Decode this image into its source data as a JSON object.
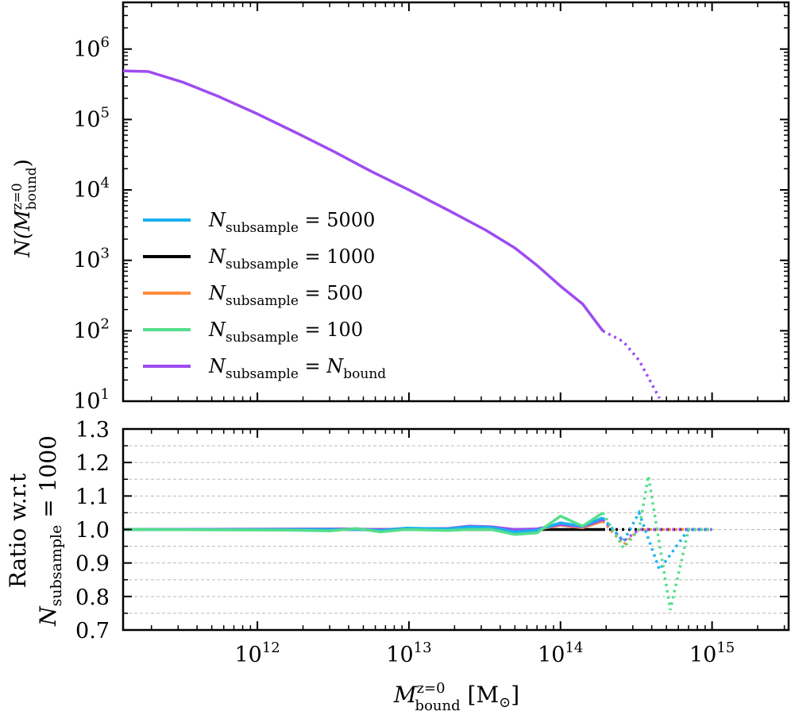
{
  "colors": {
    "n5000": "#1ab0f0",
    "n1000": "#000000",
    "n500": "#ff8c3c",
    "n100": "#55de8c",
    "nbound": "#9d4cf0"
  },
  "chart_data": [
    {
      "panel": "top",
      "type": "line",
      "xscale": "log",
      "yscale": "log",
      "xlim": [
        130000000000.0,
        3200000000000000.0
      ],
      "ylim": [
        10,
        4600000.0
      ],
      "yticks": [
        {
          "exp": "1",
          "value": 10
        },
        {
          "exp": "2",
          "value": 100
        },
        {
          "exp": "3",
          "value": 1000
        },
        {
          "exp": "4",
          "value": 10000
        },
        {
          "exp": "5",
          "value": 100000
        },
        {
          "exp": "6",
          "value": 1000000
        }
      ],
      "ylabel": {
        "main": "N(M",
        "sup": "z=0",
        "sub": "bound",
        "close": ")"
      },
      "series": [
        {
          "key": "n5000",
          "label": "N",
          "label_sub": "subsample",
          "label_eq": " = 5000",
          "label_tail": ""
        },
        {
          "key": "n1000",
          "label": "N",
          "label_sub": "subsample",
          "label_eq": " = 1000",
          "label_tail": ""
        },
        {
          "key": "n500",
          "label": "N",
          "label_sub": "subsample",
          "label_eq": " = 500",
          "label_tail": ""
        },
        {
          "key": "n100",
          "label": "N",
          "label_sub": "subsample",
          "label_eq": " = 100",
          "label_tail": ""
        },
        {
          "key": "nbound",
          "label": "N",
          "label_sub": "subsample",
          "label_eq": " = N",
          "label_tail": "bound"
        }
      ],
      "solid_points": [
        [
          130000000000.0,
          490000
        ],
        [
          190000000000.0,
          480000
        ],
        [
          320000000000.0,
          340000
        ],
        [
          560000000000.0,
          210000
        ],
        [
          1000000000000.0,
          120000
        ],
        [
          1800000000000.0,
          65000
        ],
        [
          3200000000000.0,
          35000
        ],
        [
          5600000000000.0,
          18500
        ],
        [
          10000000000000.0,
          10000
        ],
        [
          18000000000000.0,
          5200
        ],
        [
          32000000000000.0,
          2700
        ],
        [
          50000000000000.0,
          1500
        ],
        [
          70000000000000.0,
          850
        ],
        [
          100000000000000.0,
          430
        ],
        [
          140000000000000.0,
          240
        ],
        [
          190000000000000.0,
          100
        ]
      ],
      "dotted_points": [
        [
          190000000000000.0,
          100
        ],
        [
          260000000000000.0,
          70
        ],
        [
          330000000000000.0,
          38
        ],
        [
          450000000000000.0,
          11
        ]
      ]
    },
    {
      "panel": "bottom",
      "type": "line",
      "xscale": "log",
      "yscale": "linear",
      "xlim": [
        130000000000.0,
        3200000000000000.0
      ],
      "ylim": [
        0.7,
        1.3
      ],
      "yticks": [
        "0.7",
        "0.8",
        "0.9",
        "1.0",
        "1.1",
        "1.2",
        "1.3"
      ],
      "ytick_values": [
        0.7,
        0.8,
        0.9,
        1.0,
        1.1,
        1.2,
        1.3
      ],
      "grid_values": [
        0.75,
        0.8,
        0.85,
        0.9,
        0.95,
        1.0,
        1.05,
        1.1,
        1.15,
        1.2,
        1.25
      ],
      "xticks": [
        {
          "exp": "12",
          "value": 1000000000000.0
        },
        {
          "exp": "13",
          "value": 10000000000000.0
        },
        {
          "exp": "14",
          "value": 100000000000000.0
        },
        {
          "exp": "15",
          "value": 1000000000000000.0
        }
      ],
      "ylabel_line1": "Ratio w.r.t",
      "ylabel_line2": {
        "main": "N",
        "sub": "subsample",
        "tail": " = 1000"
      },
      "xlabel": {
        "main": "M",
        "sup": "z=0",
        "sub": "bound",
        "unit": " [M",
        "unit_sub": "⊙",
        "close": "]"
      },
      "series": [
        {
          "key": "n1000",
          "solid": [
            [
              130000000000.0,
              1.0
            ],
            [
              10000000000000.0,
              1.0
            ],
            [
              100000000000000.0,
              1.0
            ],
            [
              190000000000000.0,
              1.0
            ]
          ],
          "dotted": [
            [
              190000000000000.0,
              1.0
            ],
            [
              260000000000000.0,
              1.0
            ],
            [
              330000000000000.0,
              1.0
            ],
            [
              450000000000000.0,
              1.0
            ],
            [
              700000000000000.0,
              1.0
            ],
            [
              1000000000000000.0,
              1.0
            ]
          ]
        },
        {
          "key": "n500",
          "solid": [
            [
              130000000000.0,
              1.0
            ],
            [
              4500000000000.0,
              1.0
            ],
            [
              6500000000000.0,
              0.998
            ],
            [
              9500000000000.0,
              1.003
            ],
            [
              18000000000000.0,
              1.002
            ],
            [
              25000000000000.0,
              1.006
            ],
            [
              35000000000000.0,
              1.003
            ],
            [
              50000000000000.0,
              0.995
            ],
            [
              70000000000000.0,
              1.0
            ],
            [
              100000000000000.0,
              1.013
            ],
            [
              140000000000000.0,
              1.005
            ],
            [
              190000000000000.0,
              1.025
            ]
          ],
          "dotted": [
            [
              190000000000000.0,
              1.025
            ],
            [
              260000000000000.0,
              0.955
            ],
            [
              330000000000000.0,
              1.0
            ],
            [
              450000000000000.0,
              1.0
            ],
            [
              700000000000000.0,
              1.0
            ],
            [
              1000000000000000.0,
              1.0
            ]
          ]
        },
        {
          "key": "nbound",
          "solid": [
            [
              130000000000.0,
              1.0
            ],
            [
              4500000000000.0,
              1.002
            ],
            [
              6500000000000.0,
              0.999
            ],
            [
              9500000000000.0,
              1.003
            ],
            [
              18000000000000.0,
              1.003
            ],
            [
              25000000000000.0,
              1.01
            ],
            [
              35000000000000.0,
              1.008
            ],
            [
              50000000000000.0,
              1.0
            ],
            [
              70000000000000.0,
              1.002
            ],
            [
              100000000000000.0,
              1.015
            ],
            [
              140000000000000.0,
              1.008
            ],
            [
              190000000000000.0,
              1.03
            ]
          ],
          "dotted": [
            [
              190000000000000.0,
              1.03
            ],
            [
              260000000000000.0,
              0.965
            ],
            [
              330000000000000.0,
              1.0
            ],
            [
              450000000000000.0,
              1.0
            ],
            [
              700000000000000.0,
              1.0
            ],
            [
              1000000000000000.0,
              1.0
            ]
          ]
        },
        {
          "key": "n5000",
          "solid": [
            [
              130000000000.0,
              1.0
            ],
            [
              4500000000000.0,
              1.0
            ],
            [
              6500000000000.0,
              0.997
            ],
            [
              9500000000000.0,
              1.004
            ],
            [
              18000000000000.0,
              1.002
            ],
            [
              25000000000000.0,
              1.008
            ],
            [
              35000000000000.0,
              1.006
            ],
            [
              50000000000000.0,
              0.993
            ],
            [
              70000000000000.0,
              0.998
            ],
            [
              100000000000000.0,
              1.02
            ],
            [
              140000000000000.0,
              1.01
            ],
            [
              190000000000000.0,
              1.035
            ]
          ],
          "dotted": [
            [
              190000000000000.0,
              1.035
            ],
            [
              260000000000000.0,
              0.965
            ],
            [
              330000000000000.0,
              1.05
            ],
            [
              450000000000000.0,
              0.88
            ],
            [
              700000000000000.0,
              1.0
            ],
            [
              1000000000000000.0,
              1.0
            ]
          ]
        },
        {
          "key": "n100",
          "solid": [
            [
              130000000000.0,
              1.0
            ],
            [
              1500000000000.0,
              0.998
            ],
            [
              3000000000000.0,
              0.996
            ],
            [
              4500000000000.0,
              1.003
            ],
            [
              6500000000000.0,
              0.993
            ],
            [
              9500000000000.0,
              1.0
            ],
            [
              18000000000000.0,
              0.997
            ],
            [
              25000000000000.0,
              1.0
            ],
            [
              35000000000000.0,
              1.0
            ],
            [
              50000000000000.0,
              0.985
            ],
            [
              70000000000000.0,
              0.99
            ],
            [
              100000000000000.0,
              1.04
            ],
            [
              140000000000000.0,
              1.01
            ],
            [
              190000000000000.0,
              1.05
            ]
          ],
          "dotted": [
            [
              190000000000000.0,
              1.05
            ],
            [
              260000000000000.0,
              0.945
            ],
            [
              330000000000000.0,
              1.0
            ],
            [
              380000000000000.0,
              1.16
            ],
            [
              530000000000000.0,
              0.76
            ],
            [
              700000000000000.0,
              1.0
            ],
            [
              1000000000000000.0,
              1.0
            ]
          ]
        }
      ]
    }
  ]
}
